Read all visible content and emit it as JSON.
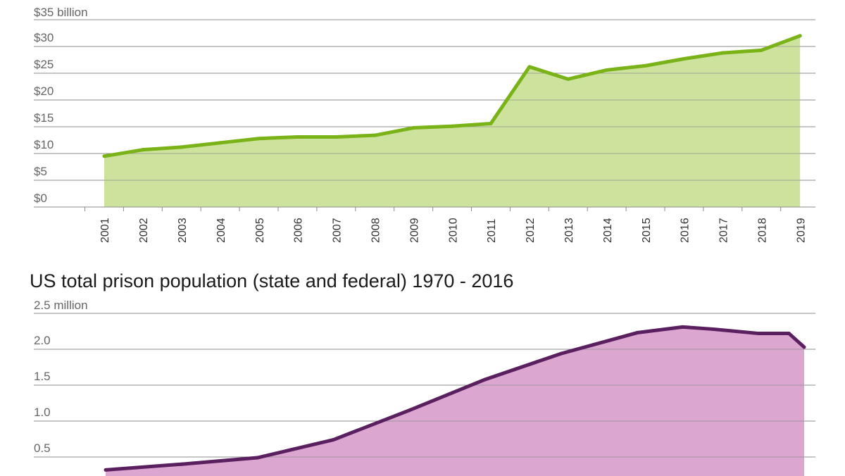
{
  "chart_data": [
    {
      "type": "area",
      "title": "",
      "ylabel": "",
      "xlabel": "",
      "y_top_label": "$35 billion",
      "y_tick_labels": [
        "$0",
        "$5",
        "$10",
        "$15",
        "$20",
        "$25",
        "$30"
      ],
      "ylim": [
        0,
        35
      ],
      "grid": true,
      "line_color": "#7ab317",
      "fill_color": "#cde29d",
      "x": [
        "2001",
        "2002",
        "2003",
        "2004",
        "2005",
        "2006",
        "2007",
        "2008",
        "2009",
        "2010",
        "2011",
        "2012",
        "2013",
        "2014",
        "2015",
        "2016",
        "2017",
        "2018",
        "2019"
      ],
      "series": [
        {
          "values": [
            9.5,
            10.7,
            11.2,
            12.0,
            12.8,
            13.1,
            13.1,
            13.4,
            14.8,
            15.1,
            15.6,
            26.2,
            23.9,
            25.6,
            26.4,
            27.7,
            28.8,
            29.3,
            32.0
          ]
        }
      ]
    },
    {
      "type": "area",
      "title": "US total prison population (state and federal) 1970 - 2016",
      "ylabel": "",
      "xlabel": "",
      "y_top_label": "2.5 million",
      "y_tick_labels": [
        "0.5",
        "1.0",
        "1.5",
        "2.0"
      ],
      "ylim": [
        0,
        2.5
      ],
      "grid": true,
      "line_color": "#5a1f5f",
      "fill_color": "#dba6d0",
      "x_range": [
        1970,
        2016
      ],
      "series": [
        {
          "x": [
            1970,
            1975,
            1980,
            1985,
            1990,
            1995,
            2000,
            2005,
            2008,
            2010,
            2013,
            2015,
            2016
          ],
          "values": [
            0.32,
            0.4,
            0.49,
            0.74,
            1.15,
            1.58,
            1.94,
            2.23,
            2.31,
            2.28,
            2.22,
            2.22,
            2.03
          ]
        }
      ]
    }
  ]
}
